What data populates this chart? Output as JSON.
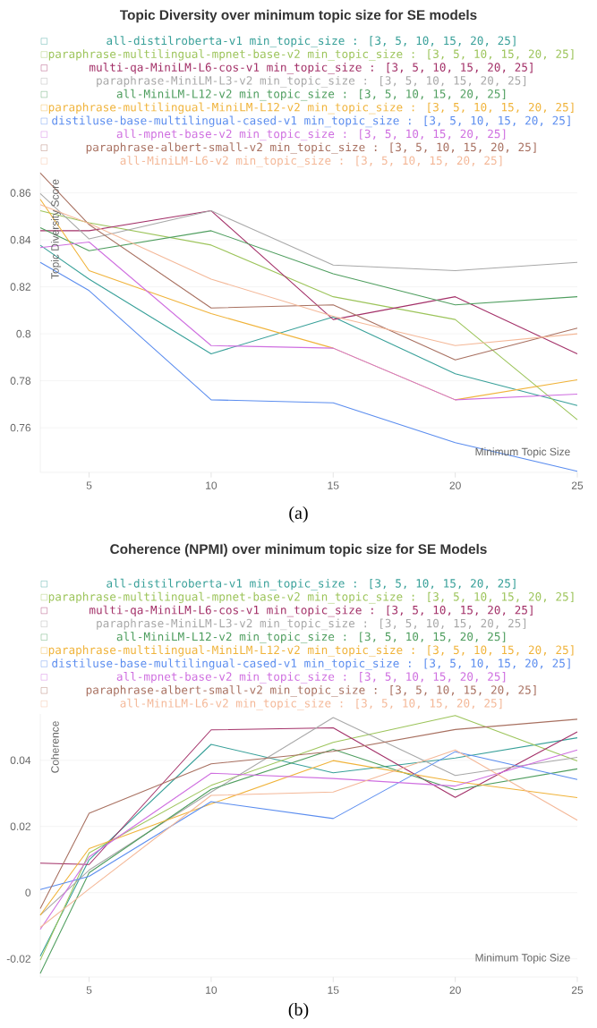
{
  "chart_data": [
    {
      "type": "line",
      "title": "Topic Diversity over minimum topic size for SE models",
      "xlabel": "Minimum Topic Size",
      "ylabel": "Topic Diversity Score",
      "annotations": [
        "(a)"
      ],
      "x": [
        3,
        5,
        10,
        15,
        20,
        25
      ],
      "xlim": [
        3,
        25
      ],
      "xticks": [
        5,
        10,
        15,
        20,
        25
      ],
      "ylim": [
        0.741,
        0.869
      ],
      "yticks": [
        0.76,
        0.78,
        {
          "value": 0.8,
          "label": "0.8"
        },
        0.82,
        0.84,
        0.86
      ],
      "grid": "y",
      "legend": "top",
      "series": [
        {
          "name": "all-distilroberta-v1 min_topic_size : [3, 5, 10, 15, 20, 25]",
          "color": "#38a099",
          "values": [
            0.8377,
            0.8233,
            0.7915,
            0.8072,
            0.783,
            0.7695
          ]
        },
        {
          "name": "paraphrase-multilingual-mpnet-base-v2 min_topic_size : [3, 5, 10, 15, 20, 25]",
          "color": "#9cc45a",
          "values": [
            0.8524,
            0.8473,
            0.8378,
            0.8158,
            0.8061,
            0.7634
          ]
        },
        {
          "name": "multi-qa-MiniLM-L6-cos-v1 min_topic_size : [3, 5, 10, 15, 20, 25]",
          "color": "#a33068",
          "values": [
            0.8439,
            0.8439,
            0.8524,
            0.8061,
            0.8158,
            0.7915
          ]
        },
        {
          "name": "paraphrase-MiniLM-L3-v2 min_topic_size : [3, 5, 10, 15, 20, 25]",
          "color": "#a8a8a8",
          "values": [
            0.8597,
            0.8404,
            0.8524,
            0.8293,
            0.8269,
            0.8304
          ]
        },
        {
          "name": "all-MiniLM-L12-v2 min_topic_size : [3, 5, 10, 15, 20, 25]",
          "color": "#4f9e5f",
          "values": [
            0.8452,
            0.8354,
            0.8439,
            0.8256,
            0.8123,
            0.8158
          ]
        },
        {
          "name": "paraphrase-multilingual-MiniLM-L12-v2 min_topic_size : [3, 5, 10, 15, 20, 25]",
          "color": "#f0b33a",
          "values": [
            0.8573,
            0.8269,
            0.8086,
            0.7939,
            0.7719,
            0.7804
          ]
        },
        {
          "name": "distiluse-base-multilingual-cased-v1 min_topic_size : [3, 5, 10, 15, 20, 25]",
          "color": "#5b8def",
          "values": [
            0.8304,
            0.8184,
            0.7719,
            0.7706,
            0.7537,
            0.7415
          ]
        },
        {
          "name": "all-mpnet-base-v2 min_topic_size : [3, 5, 10, 15, 20, 25]",
          "color": "#cf6fe0",
          "values": [
            0.8367,
            0.8391,
            0.795,
            0.7939,
            0.7719,
            0.7743
          ]
        },
        {
          "name": "paraphrase-albert-small-v2 min_topic_size : [3, 5, 10, 15, 20, 25]",
          "color": "#a87060",
          "values": [
            0.8685,
            0.8465,
            0.811,
            0.8123,
            0.7889,
            0.8024
          ]
        },
        {
          "name": "all-MiniLM-L6-v2 min_topic_size : [3, 5, 10, 15, 20, 25]",
          "color": "#f4b898",
          "values": [
            0.855,
            0.847,
            0.8233,
            0.8075,
            0.795,
            0.8
          ]
        }
      ]
    },
    {
      "type": "line",
      "title": "Coherence (NPMI) over minimum topic size for SE Models",
      "xlabel": "Minimum Topic Size",
      "ylabel": "Coherence",
      "annotations": [
        "(b)"
      ],
      "x": [
        3,
        5,
        10,
        15,
        20,
        25
      ],
      "xlim": [
        3,
        25
      ],
      "xticks": [
        5,
        10,
        15,
        20,
        25
      ],
      "ylim": [
        -0.0255,
        0.054
      ],
      "yticks": [
        -0.02,
        0,
        0.02,
        0.04
      ],
      "grid": "y",
      "legend": "top",
      "series": [
        {
          "name": "all-distilroberta-v1 min_topic_size : [3, 5, 10, 15, 20, 25]",
          "color": "#38a099",
          "values": [
            -0.0192,
            0.0099,
            0.0448,
            0.0362,
            0.0407,
            0.0468
          ]
        },
        {
          "name": "paraphrase-multilingual-mpnet-base-v2 min_topic_size : [3, 5, 10, 15, 20, 25]",
          "color": "#9cc45a",
          "values": [
            -0.0204,
            0.012,
            0.0324,
            0.0454,
            0.0535,
            0.0398
          ]
        },
        {
          "name": "multi-qa-MiniLM-L6-cos-v1 min_topic_size : [3, 5, 10, 15, 20, 25]",
          "color": "#a33068",
          "values": [
            0.0089,
            0.0085,
            0.0492,
            0.0498,
            0.0288,
            0.0486
          ]
        },
        {
          "name": "paraphrase-MiniLM-L3-v2 min_topic_size : [3, 5, 10, 15, 20, 25]",
          "color": "#a8a8a8",
          "values": [
            -0.0068,
            0.0068,
            0.0304,
            0.0529,
            0.0354,
            0.0409
          ]
        },
        {
          "name": "all-MiniLM-L12-v2 min_topic_size : [3, 5, 10, 15, 20, 25]",
          "color": "#4f9e5f",
          "values": [
            -0.0244,
            0.006,
            0.0312,
            0.0433,
            0.0311,
            0.0374
          ]
        },
        {
          "name": "paraphrase-multilingual-MiniLM-L12-v2 min_topic_size : [3, 5, 10, 15, 20, 25]",
          "color": "#f0b33a",
          "values": [
            -0.0068,
            0.0133,
            0.0268,
            0.0399,
            0.0336,
            0.0287
          ]
        },
        {
          "name": "distiluse-base-multilingual-cased-v1 min_topic_size : [3, 5, 10, 15, 20, 25]",
          "color": "#5b8def",
          "values": [
            0.0009,
            0.0049,
            0.0275,
            0.0224,
            0.0426,
            0.0342
          ]
        },
        {
          "name": "all-mpnet-base-v2 min_topic_size : [3, 5, 10, 15, 20, 25]",
          "color": "#cf6fe0",
          "values": [
            -0.0111,
            0.0108,
            0.0361,
            0.0345,
            0.0322,
            0.0431
          ]
        },
        {
          "name": "paraphrase-albert-small-v2 min_topic_size : [3, 5, 10, 15, 20, 25]",
          "color": "#a87060",
          "values": [
            -0.0048,
            0.024,
            0.0389,
            0.0427,
            0.0493,
            0.0524
          ]
        },
        {
          "name": "all-MiniLM-L6-v2 min_topic_size : [3, 5, 10, 15, 20, 25]",
          "color": "#f4b898",
          "values": [
            -0.0105,
            0.0011,
            0.0294,
            0.0304,
            0.0431,
            0.0219
          ]
        }
      ]
    }
  ]
}
